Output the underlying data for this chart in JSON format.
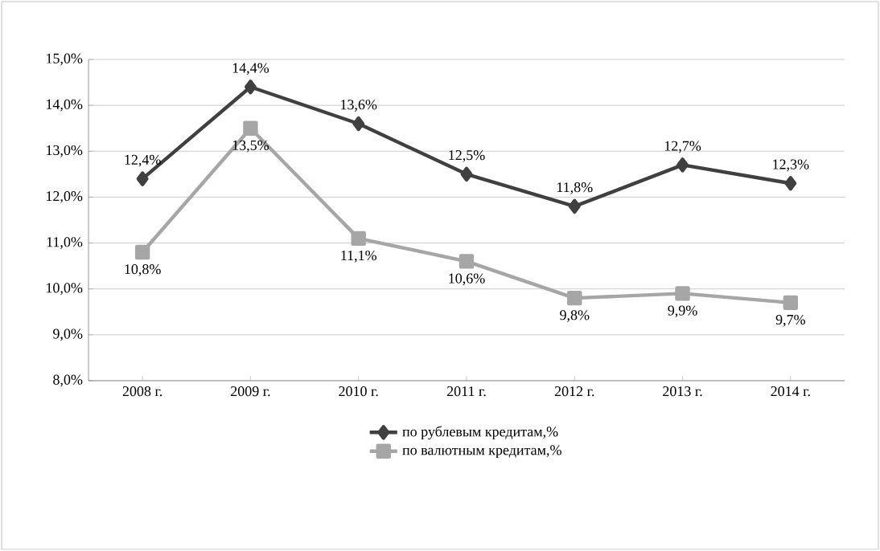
{
  "chart_data": {
    "type": "line",
    "categories": [
      "2008 г.",
      "2009 г.",
      "2010 г.",
      "2011 г.",
      "2012 г.",
      "2013 г.",
      "2014 г."
    ],
    "series": [
      {
        "name": "по рублевым кредитам,%",
        "color": "#404040",
        "marker": "diamond",
        "values": [
          12.4,
          14.4,
          13.6,
          12.5,
          11.8,
          12.7,
          12.3
        ],
        "value_labels": [
          "12,4%",
          "14,4%",
          "13,6%",
          "12,5%",
          "11,8%",
          "12,7%",
          "12,3%"
        ]
      },
      {
        "name": "по  валютным кредитам,%",
        "color": "#a6a6a6",
        "marker": "square",
        "values": [
          10.8,
          13.5,
          11.1,
          10.6,
          9.8,
          9.9,
          9.7
        ],
        "value_labels": [
          "10,8%",
          "13,5%",
          "11,1%",
          "10,6%",
          "9,8%",
          "9,9%",
          "9,7%"
        ]
      }
    ],
    "ylim": [
      8,
      15
    ],
    "yticks": [
      {
        "value": 8,
        "label": "8,0%"
      },
      {
        "value": 9,
        "label": "9,0%"
      },
      {
        "value": 10,
        "label": "10,0%"
      },
      {
        "value": 11,
        "label": "11,0%"
      },
      {
        "value": 12,
        "label": "12,0%"
      },
      {
        "value": 13,
        "label": "13,0%"
      },
      {
        "value": 14,
        "label": "14,0%"
      },
      {
        "value": 15,
        "label": "15,0%"
      }
    ],
    "grid": "y",
    "legend": "bottom",
    "line_style": "solid"
  }
}
